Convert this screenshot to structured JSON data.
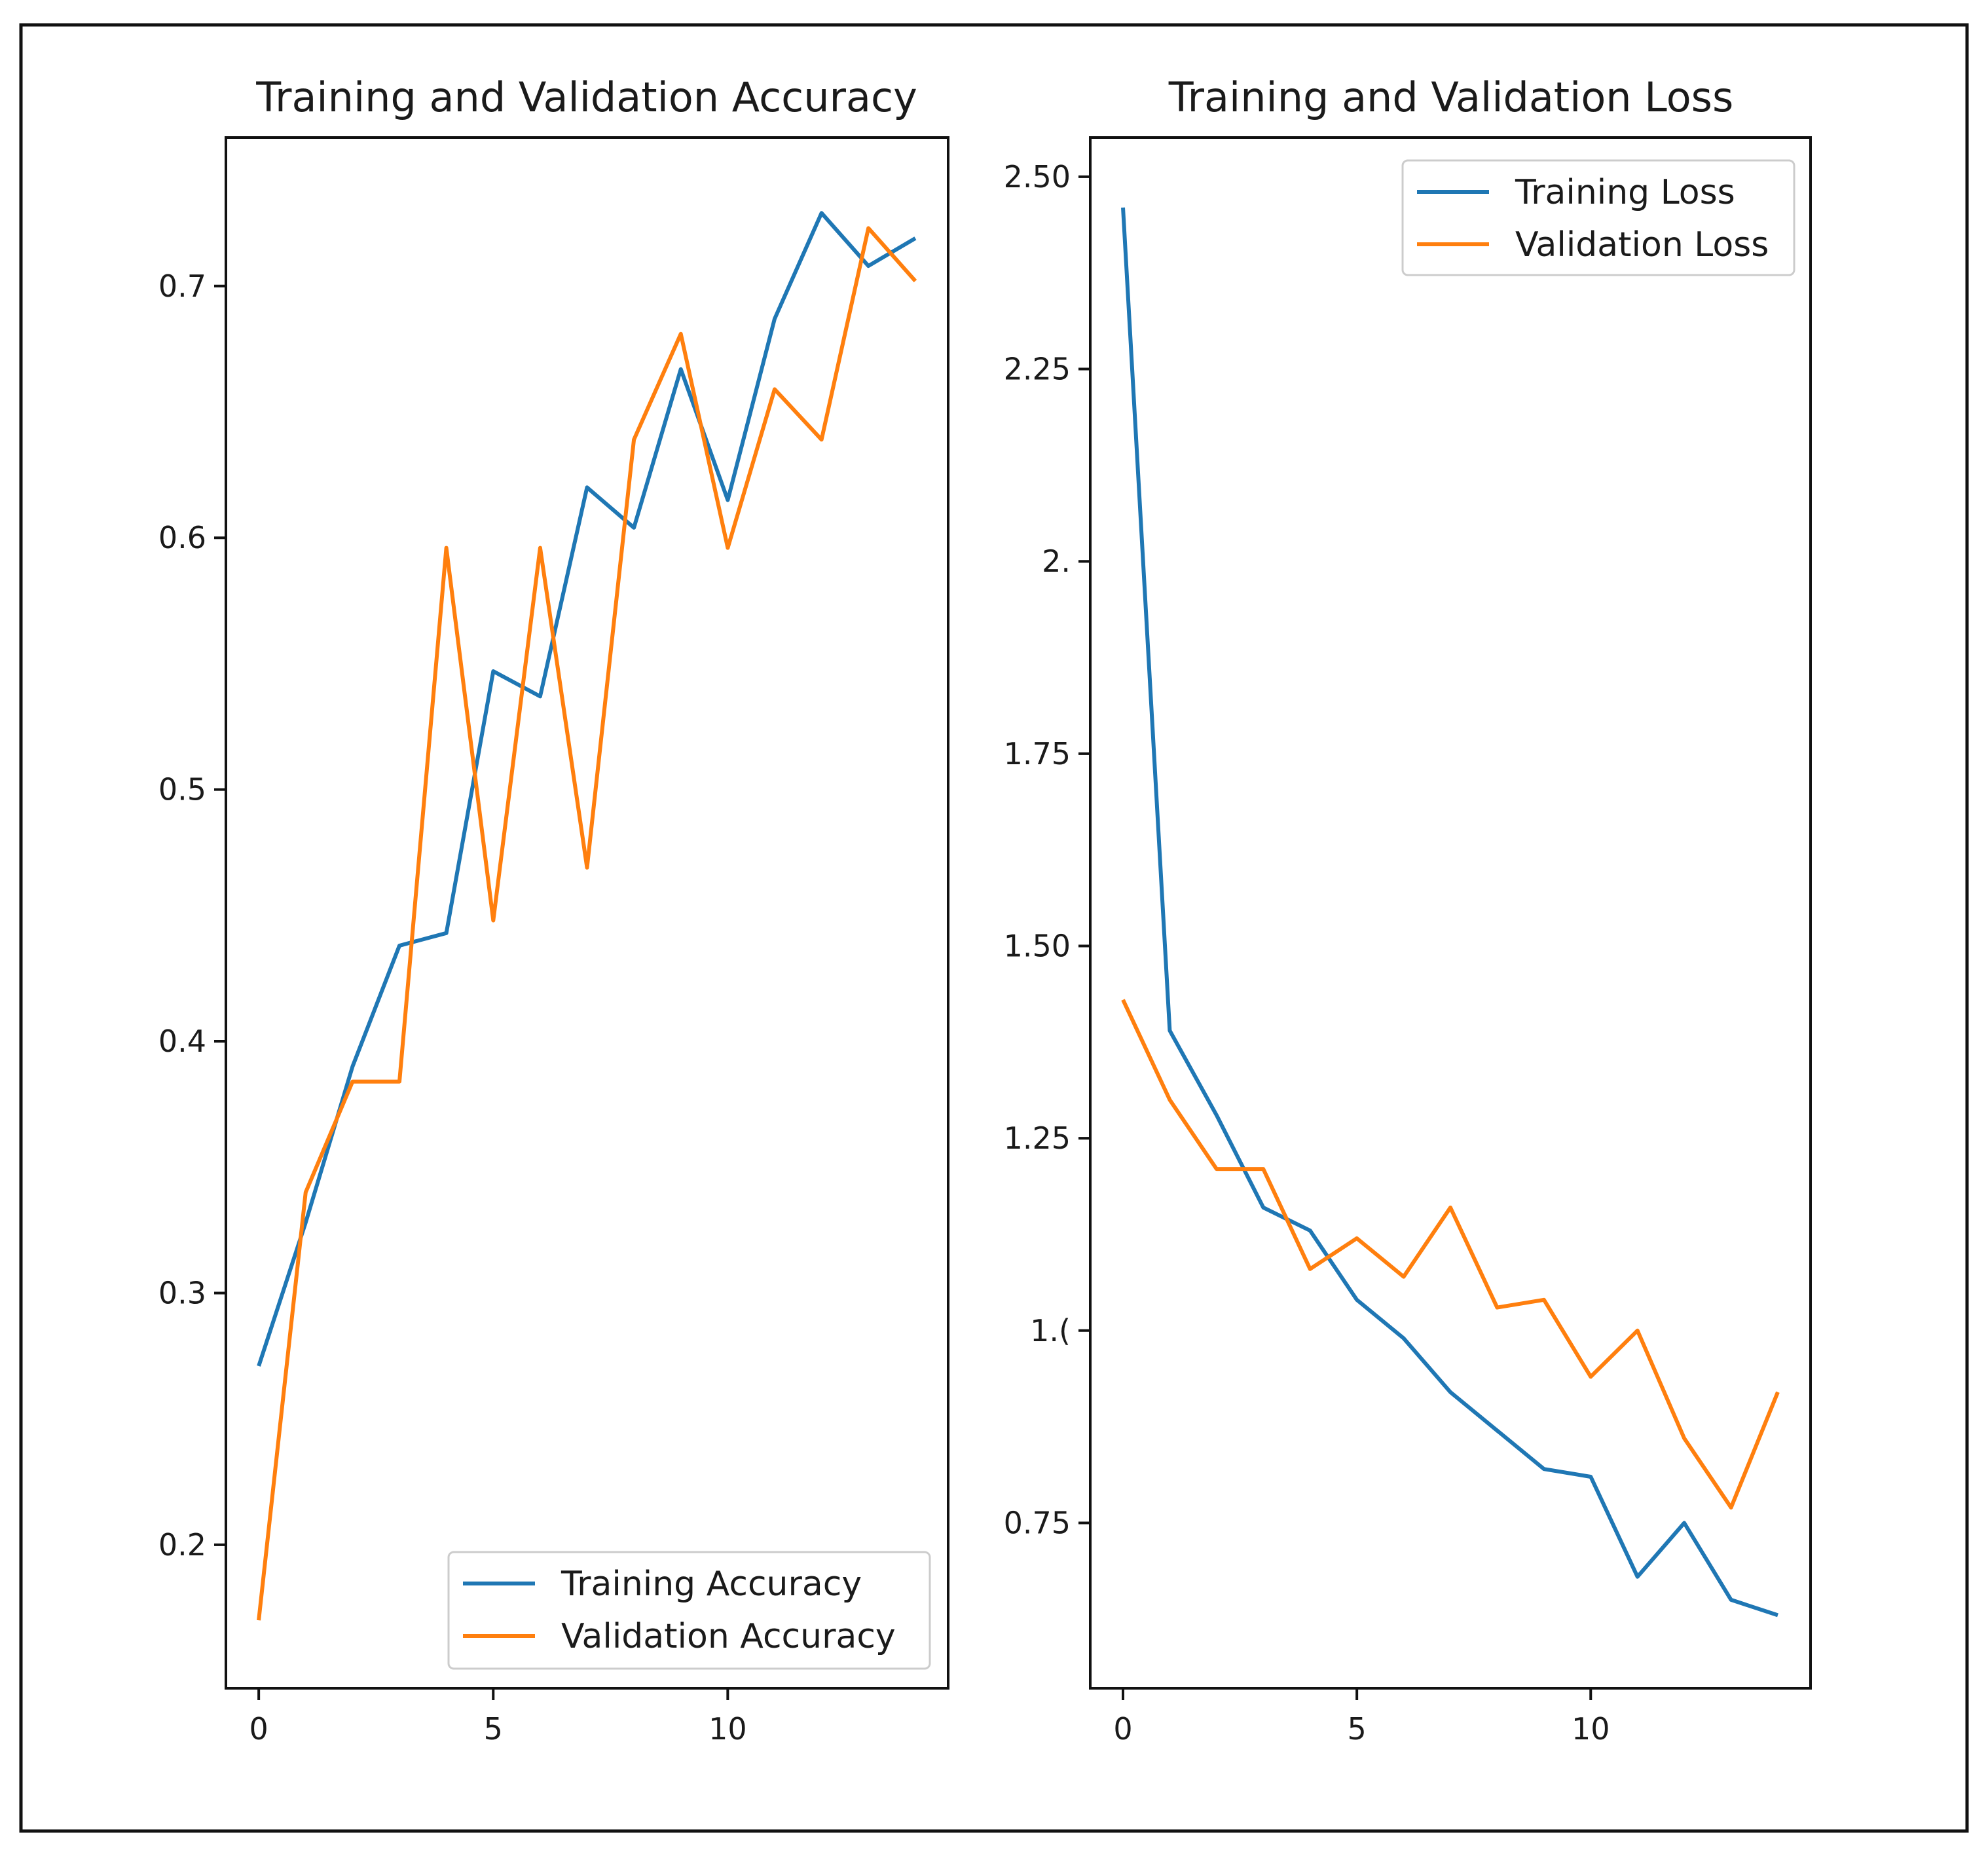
{
  "chart_data": [
    {
      "type": "line",
      "title": "Training and Validation Accuracy",
      "xlabel": "",
      "ylabel": "",
      "xlim": [
        -0.7,
        14.7
      ],
      "ylim": [
        0.143,
        0.759
      ],
      "xticks": [
        0,
        5,
        10
      ],
      "xtick_labels": [
        "0",
        "5",
        "10"
      ],
      "yticks": [
        0.2,
        0.3,
        0.4,
        0.5,
        0.6,
        0.7
      ],
      "ytick_labels": [
        "0.2",
        "0.3",
        "0.4",
        "0.5",
        "0.6",
        "0.7"
      ],
      "legend_position": "lower-right",
      "grid": false,
      "x": [
        0,
        1,
        2,
        3,
        4,
        5,
        6,
        7,
        8,
        9,
        10,
        11,
        12,
        13,
        14
      ],
      "series": [
        {
          "name": "Training Accuracy",
          "color": "#1f77b4",
          "values": [
            0.271,
            0.328,
            0.39,
            0.438,
            0.443,
            0.547,
            0.537,
            0.62,
            0.604,
            0.667,
            0.615,
            0.687,
            0.729,
            0.708,
            0.719
          ]
        },
        {
          "name": "Validation Accuracy",
          "color": "#ff7f0e",
          "values": [
            0.17,
            0.34,
            0.384,
            0.384,
            0.596,
            0.448,
            0.596,
            0.469,
            0.639,
            0.681,
            0.596,
            0.659,
            0.639,
            0.723,
            0.702
          ]
        }
      ]
    },
    {
      "type": "line",
      "title": "Training and Validation Loss",
      "xlabel": "",
      "ylabel": "",
      "xlim": [
        -0.7,
        14.7
      ],
      "ylim": [
        0.535,
        2.551
      ],
      "xticks": [
        0,
        5,
        10
      ],
      "xtick_labels": [
        "0",
        "5",
        "10"
      ],
      "yticks": [
        0.75,
        1.0,
        1.25,
        1.5,
        1.75,
        2.0,
        2.25,
        2.5
      ],
      "ytick_labels": [
        "0.75",
        "1.(",
        "1.25",
        "1.50",
        "1.75",
        "2.",
        "2.25",
        "2.50"
      ],
      "legend_position": "upper-right",
      "grid": false,
      "x": [
        0,
        1,
        2,
        3,
        4,
        5,
        6,
        7,
        8,
        9,
        10,
        11,
        12,
        13,
        14
      ],
      "series": [
        {
          "name": "Training Loss",
          "color": "#1f77b4",
          "values": [
            2.46,
            1.39,
            1.28,
            1.16,
            1.13,
            1.04,
            0.99,
            0.92,
            0.87,
            0.82,
            0.81,
            0.68,
            0.75,
            0.65,
            0.63
          ]
        },
        {
          "name": "Validation Loss",
          "color": "#ff7f0e",
          "values": [
            1.43,
            1.3,
            1.21,
            1.21,
            1.08,
            1.12,
            1.07,
            1.16,
            1.03,
            1.04,
            0.94,
            1.0,
            0.86,
            0.77,
            0.92
          ]
        }
      ]
    }
  ]
}
